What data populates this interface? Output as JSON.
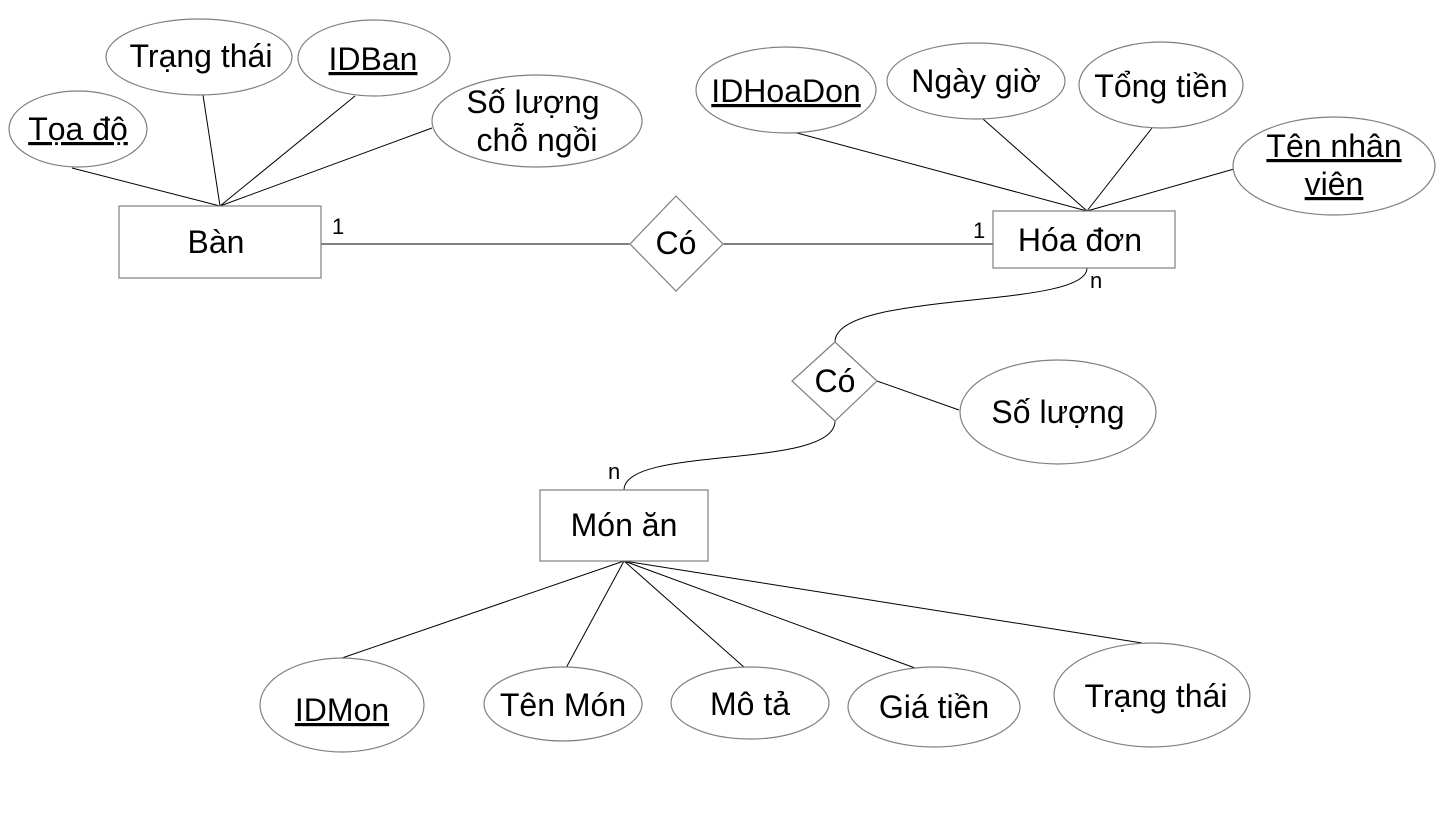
{
  "entities": {
    "ban": "Bàn",
    "hoadon": "Hóa đơn",
    "monan": "Món ăn"
  },
  "relationships": {
    "ban_hoadon": "Có",
    "hoadon_monan": "Có"
  },
  "attributes": {
    "ban": {
      "toado": "Tọa độ",
      "trangthai": "Trạng thái",
      "idban": "IDBan",
      "soluongchongoi_1": "Số lượng",
      "soluongchongoi_2": "chỗ ngồi"
    },
    "hoadon": {
      "idhoadon": "IDHoaDon",
      "ngaygio": "Ngày giờ",
      "tongtien": "Tổng tiền",
      "tennhanvien_1": "Tên nhân",
      "tennhanvien_2": "viên"
    },
    "relationship": {
      "soluong": "Số lượng"
    },
    "monan": {
      "idmon": "IDMon",
      "tenmon": "Tên Món",
      "mota": "Mô tả",
      "giatien": "Giá tiền",
      "trangthai": "Trạng thái"
    }
  },
  "cardinalities": {
    "ban_side": "1",
    "hoadon_side": "1",
    "hoadon_rel2": "n",
    "monan_rel2": "n"
  }
}
